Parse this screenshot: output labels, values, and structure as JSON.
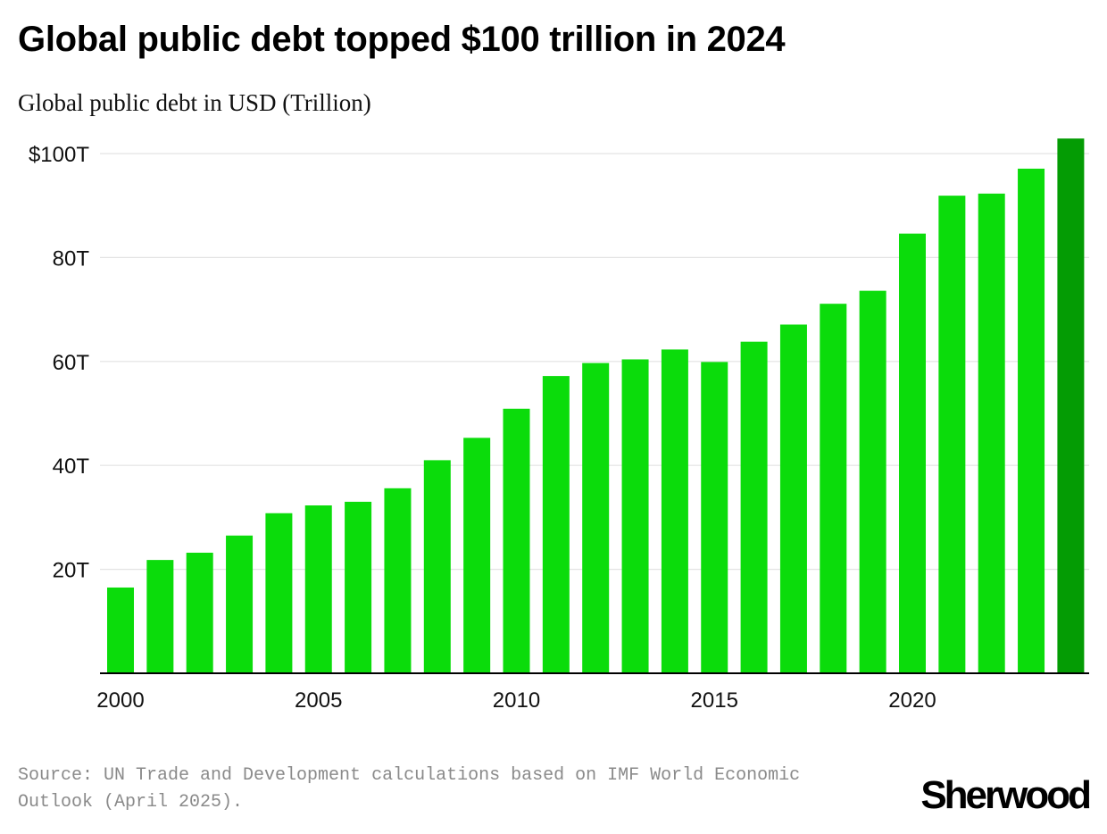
{
  "chart_data": {
    "type": "bar",
    "title": "Global public debt topped $100 trillion in 2024",
    "subtitle": "Global public debt in USD (Trillion)",
    "categories": [
      "2000",
      "2001",
      "2002",
      "2003",
      "2004",
      "2005",
      "2006",
      "2007",
      "2008",
      "2009",
      "2010",
      "2011",
      "2012",
      "2013",
      "2014",
      "2015",
      "2016",
      "2017",
      "2018",
      "2019",
      "2020",
      "2021",
      "2022",
      "2023",
      "2024"
    ],
    "values": [
      16.5,
      21.8,
      23.2,
      26.5,
      30.8,
      32.3,
      33.0,
      35.6,
      41.0,
      45.3,
      50.9,
      57.2,
      59.7,
      60.4,
      62.3,
      59.9,
      63.8,
      67.1,
      71.1,
      73.6,
      84.6,
      91.9,
      92.3,
      97.1,
      102.9
    ],
    "ylim": [
      0,
      100
    ],
    "y_ticks": [
      {
        "value": 20,
        "label": "20T"
      },
      {
        "value": 40,
        "label": "40T"
      },
      {
        "value": 60,
        "label": "60T"
      },
      {
        "value": 80,
        "label": "80T"
      },
      {
        "value": 100,
        "label": "$100T"
      }
    ],
    "x_ticks": [
      "2000",
      "2005",
      "2010",
      "2015",
      "2020"
    ],
    "grid": true,
    "colors": {
      "bar": "#0bdc0b",
      "highlight_bar": "#049c04",
      "grid": "#e3e3e3",
      "axis": "#000000"
    },
    "highlight_index": 24
  },
  "source": "Source: UN Trade and Development calculations based on IMF World Economic Outlook (April 2025).",
  "brand": "Sherwood"
}
